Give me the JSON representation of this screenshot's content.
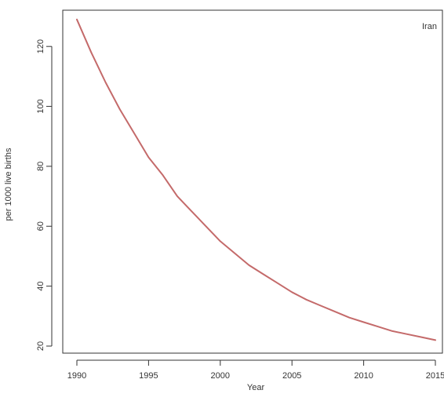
{
  "chart_data": {
    "type": "line",
    "title": "",
    "xlabel": "Year",
    "ylabel": "per 1000 live births",
    "xlim": [
      1990,
      2015
    ],
    "ylim": [
      20,
      130
    ],
    "xticks": [
      1990,
      1995,
      2000,
      2005,
      2010,
      2015
    ],
    "xtick_labels": [
      "1990",
      "1995",
      "2000",
      "2005",
      "2010",
      "2015"
    ],
    "yticks": [
      20,
      40,
      60,
      80,
      100,
      120
    ],
    "ytick_labels": [
      "20",
      "40",
      "60",
      "80",
      "100",
      "120"
    ],
    "grid": false,
    "legend_position": "top-right",
    "series": [
      {
        "name": "Iran",
        "color": "#c46a6a",
        "x": [
          1990,
          1991,
          1992,
          1993,
          1994,
          1995,
          1996,
          1997,
          1998,
          1999,
          2000,
          2001,
          2002,
          2003,
          2004,
          2005,
          2006,
          2007,
          2008,
          2009,
          2010,
          2011,
          2012,
          2013,
          2014,
          2015
        ],
        "values": [
          129,
          118,
          108,
          99,
          91,
          83,
          77,
          70,
          65,
          60,
          55,
          51,
          47,
          44,
          41,
          38,
          35.5,
          33.5,
          31.5,
          29.5,
          28,
          26.5,
          25,
          24,
          23,
          22
        ]
      }
    ]
  }
}
